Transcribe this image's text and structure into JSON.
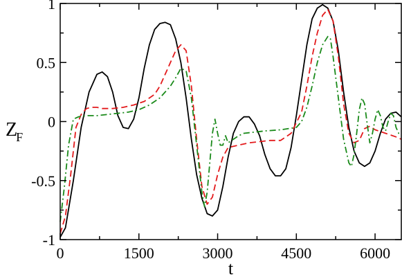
{
  "chart_data": {
    "type": "line",
    "title": "",
    "xlabel": "t",
    "ylabel": "Z",
    "ylabel_subscript": "F",
    "xlim": [
      0,
      6500
    ],
    "ylim": [
      -1,
      1
    ],
    "grid": false,
    "legend": "none",
    "x_ticks": [
      0,
      1500,
      3000,
      4500,
      6000
    ],
    "x_tick_labels": [
      "0",
      "1500",
      "3000",
      "4500",
      "6000"
    ],
    "y_ticks": [
      -1,
      -0.5,
      0,
      0.5,
      1
    ],
    "y_tick_labels": [
      "-1",
      "-0.5",
      "0",
      "0.5",
      "1"
    ],
    "series": [
      {
        "color": "#000000",
        "style": "solid",
        "points": [
          [
            0,
            -0.98
          ],
          [
            100,
            -0.9
          ],
          [
            250,
            -0.5
          ],
          [
            400,
            -0.05
          ],
          [
            550,
            0.25
          ],
          [
            700,
            0.4
          ],
          [
            800,
            0.42
          ],
          [
            900,
            0.38
          ],
          [
            1000,
            0.25
          ],
          [
            1100,
            0.05
          ],
          [
            1200,
            -0.05
          ],
          [
            1300,
            -0.06
          ],
          [
            1400,
            0.02
          ],
          [
            1500,
            0.2
          ],
          [
            1600,
            0.45
          ],
          [
            1700,
            0.65
          ],
          [
            1800,
            0.78
          ],
          [
            1900,
            0.83
          ],
          [
            2000,
            0.84
          ],
          [
            2100,
            0.82
          ],
          [
            2200,
            0.7
          ],
          [
            2300,
            0.5
          ],
          [
            2400,
            0.2
          ],
          [
            2500,
            -0.15
          ],
          [
            2600,
            -0.45
          ],
          [
            2700,
            -0.65
          ],
          [
            2800,
            -0.78
          ],
          [
            2900,
            -0.8
          ],
          [
            3000,
            -0.75
          ],
          [
            3100,
            -0.55
          ],
          [
            3200,
            -0.3
          ],
          [
            3300,
            -0.1
          ],
          [
            3400,
            0.0
          ],
          [
            3500,
            0.04
          ],
          [
            3600,
            0.04
          ],
          [
            3700,
            -0.02
          ],
          [
            3800,
            -0.12
          ],
          [
            3900,
            -0.28
          ],
          [
            4000,
            -0.4
          ],
          [
            4100,
            -0.46
          ],
          [
            4200,
            -0.46
          ],
          [
            4300,
            -0.4
          ],
          [
            4400,
            -0.22
          ],
          [
            4500,
            0.05
          ],
          [
            4600,
            0.35
          ],
          [
            4700,
            0.65
          ],
          [
            4800,
            0.87
          ],
          [
            4900,
            0.96
          ],
          [
            5000,
            0.99
          ],
          [
            5100,
            0.96
          ],
          [
            5200,
            0.85
          ],
          [
            5300,
            0.6
          ],
          [
            5400,
            0.25
          ],
          [
            5500,
            -0.05
          ],
          [
            5600,
            -0.25
          ],
          [
            5700,
            -0.35
          ],
          [
            5800,
            -0.38
          ],
          [
            5900,
            -0.35
          ],
          [
            6000,
            -0.25
          ],
          [
            6100,
            -0.1
          ],
          [
            6200,
            0.02
          ],
          [
            6300,
            0.07
          ],
          [
            6400,
            0.08
          ],
          [
            6500,
            0.04
          ]
        ]
      },
      {
        "color": "#e31a1c",
        "style": "dashed",
        "points": [
          [
            0,
            -0.95
          ],
          [
            100,
            -0.8
          ],
          [
            200,
            -0.45
          ],
          [
            300,
            -0.05
          ],
          [
            400,
            0.06
          ],
          [
            500,
            0.11
          ],
          [
            600,
            0.12
          ],
          [
            700,
            0.12
          ],
          [
            800,
            0.11
          ],
          [
            1000,
            0.11
          ],
          [
            1200,
            0.12
          ],
          [
            1400,
            0.14
          ],
          [
            1600,
            0.17
          ],
          [
            1800,
            0.23
          ],
          [
            1900,
            0.3
          ],
          [
            2000,
            0.4
          ],
          [
            2100,
            0.5
          ],
          [
            2200,
            0.6
          ],
          [
            2300,
            0.65
          ],
          [
            2400,
            0.6
          ],
          [
            2500,
            0.3
          ],
          [
            2600,
            -0.15
          ],
          [
            2700,
            -0.55
          ],
          [
            2800,
            -0.7
          ],
          [
            2900,
            -0.64
          ],
          [
            3000,
            -0.45
          ],
          [
            3100,
            -0.3
          ],
          [
            3200,
            -0.22
          ],
          [
            3400,
            -0.2
          ],
          [
            3600,
            -0.18
          ],
          [
            3800,
            -0.17
          ],
          [
            4000,
            -0.16
          ],
          [
            4200,
            -0.16
          ],
          [
            4400,
            -0.1
          ],
          [
            4600,
            0.08
          ],
          [
            4700,
            0.3
          ],
          [
            4800,
            0.55
          ],
          [
            4900,
            0.75
          ],
          [
            5000,
            0.9
          ],
          [
            5100,
            0.95
          ],
          [
            5200,
            0.85
          ],
          [
            5300,
            0.55
          ],
          [
            5400,
            0.15
          ],
          [
            5500,
            -0.1
          ],
          [
            5600,
            -0.18
          ],
          [
            5700,
            -0.16
          ],
          [
            5800,
            -0.06
          ],
          [
            5900,
            -0.04
          ],
          [
            6000,
            -0.07
          ],
          [
            6200,
            -0.1
          ],
          [
            6400,
            -0.13
          ],
          [
            6500,
            -0.15
          ]
        ]
      },
      {
        "color": "#1a8a1a",
        "style": "dashdot",
        "points": [
          [
            0,
            -0.85
          ],
          [
            80,
            -0.55
          ],
          [
            160,
            -0.2
          ],
          [
            250,
            0.02
          ],
          [
            350,
            0.04
          ],
          [
            500,
            0.05
          ],
          [
            700,
            0.05
          ],
          [
            900,
            0.06
          ],
          [
            1100,
            0.07
          ],
          [
            1300,
            0.08
          ],
          [
            1500,
            0.1
          ],
          [
            1700,
            0.14
          ],
          [
            1900,
            0.2
          ],
          [
            2000,
            0.25
          ],
          [
            2100,
            0.3
          ],
          [
            2200,
            0.37
          ],
          [
            2300,
            0.45
          ],
          [
            2400,
            0.43
          ],
          [
            2500,
            0.2
          ],
          [
            2600,
            -0.2
          ],
          [
            2700,
            -0.6
          ],
          [
            2750,
            -0.72
          ],
          [
            2800,
            -0.6
          ],
          [
            2850,
            -0.35
          ],
          [
            2900,
            -0.1
          ],
          [
            2950,
            0.02
          ],
          [
            3000,
            -0.1
          ],
          [
            3050,
            -0.2
          ],
          [
            3100,
            -0.2
          ],
          [
            3150,
            -0.12
          ],
          [
            3200,
            -0.18
          ],
          [
            3300,
            -0.15
          ],
          [
            3400,
            -0.12
          ],
          [
            3500,
            -0.1
          ],
          [
            3700,
            -0.09
          ],
          [
            3900,
            -0.08
          ],
          [
            4200,
            -0.07
          ],
          [
            4500,
            -0.05
          ],
          [
            4600,
            0.0
          ],
          [
            4700,
            0.12
          ],
          [
            4800,
            0.3
          ],
          [
            4900,
            0.5
          ],
          [
            5000,
            0.65
          ],
          [
            5100,
            0.72
          ],
          [
            5150,
            0.7
          ],
          [
            5200,
            0.55
          ],
          [
            5300,
            0.2
          ],
          [
            5400,
            -0.15
          ],
          [
            5500,
            -0.35
          ],
          [
            5550,
            -0.38
          ],
          [
            5600,
            -0.28
          ],
          [
            5650,
            -0.1
          ],
          [
            5700,
            0.1
          ],
          [
            5750,
            0.2
          ],
          [
            5800,
            0.15
          ],
          [
            5850,
            -0.02
          ],
          [
            5900,
            -0.18
          ],
          [
            5950,
            -0.1
          ],
          [
            6000,
            0.02
          ],
          [
            6050,
            0.1
          ],
          [
            6100,
            0.05
          ],
          [
            6150,
            -0.05
          ],
          [
            6200,
            -0.08
          ],
          [
            6250,
            0.0
          ],
          [
            6300,
            0.07
          ],
          [
            6350,
            0.05
          ],
          [
            6400,
            -0.05
          ],
          [
            6450,
            -0.1
          ],
          [
            6500,
            -0.1
          ]
        ]
      }
    ]
  }
}
